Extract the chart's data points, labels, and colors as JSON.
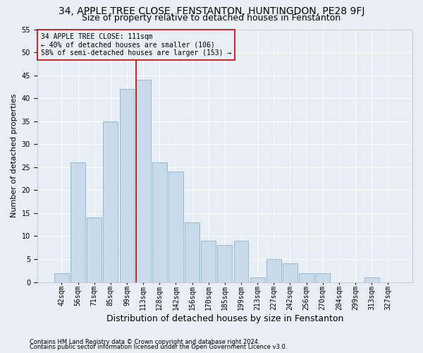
{
  "title1": "34, APPLE TREE CLOSE, FENSTANTON, HUNTINGDON, PE28 9FJ",
  "title2": "Size of property relative to detached houses in Fenstanton",
  "xlabel": "Distribution of detached houses by size in Fenstanton",
  "ylabel": "Number of detached properties",
  "footnote1": "Contains HM Land Registry data © Crown copyright and database right 2024.",
  "footnote2": "Contains public sector information licensed under the Open Government Licence v3.0.",
  "bar_labels": [
    "42sqm",
    "56sqm",
    "71sqm",
    "85sqm",
    "99sqm",
    "113sqm",
    "128sqm",
    "142sqm",
    "156sqm",
    "170sqm",
    "185sqm",
    "199sqm",
    "213sqm",
    "227sqm",
    "242sqm",
    "256sqm",
    "270sqm",
    "284sqm",
    "299sqm",
    "313sqm",
    "327sqm"
  ],
  "bar_values": [
    2,
    26,
    14,
    35,
    42,
    44,
    26,
    24,
    13,
    9,
    8,
    9,
    1,
    5,
    4,
    2,
    2,
    0,
    0,
    1,
    0
  ],
  "bar_color": "#c9daea",
  "bar_edgecolor": "#8ab4d0",
  "vline_color": "#cc0000",
  "annotation_title": "34 APPLE TREE CLOSE: 111sqm",
  "annotation_line1": "← 40% of detached houses are smaller (106)",
  "annotation_line2": "58% of semi-detached houses are larger (153) →",
  "annotation_box_edgecolor": "#cc0000",
  "ylim": [
    0,
    55
  ],
  "yticks": [
    0,
    5,
    10,
    15,
    20,
    25,
    30,
    35,
    40,
    45,
    50,
    55
  ],
  "bg_color": "#e8eef5",
  "grid_color": "#ffffff",
  "title1_fontsize": 10,
  "title2_fontsize": 9,
  "ylabel_fontsize": 8,
  "xlabel_fontsize": 9,
  "tick_fontsize": 7,
  "annotation_fontsize": 7,
  "footnote_fontsize": 6
}
